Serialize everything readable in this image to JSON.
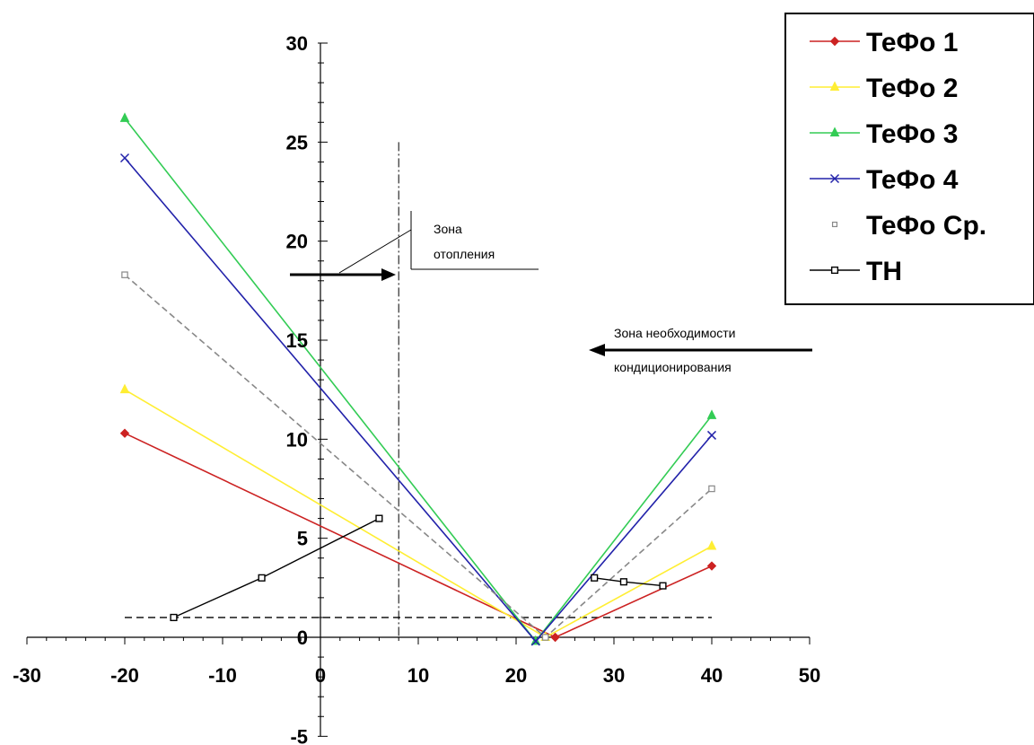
{
  "chart_data": {
    "type": "line",
    "xlim": [
      -30,
      50
    ],
    "ylim": [
      -5,
      30
    ],
    "x_ticks": [
      -30,
      -20,
      -10,
      0,
      10,
      20,
      30,
      40,
      50
    ],
    "y_ticks": [
      -5,
      0,
      5,
      10,
      15,
      20,
      25,
      30
    ],
    "grid": false,
    "legend": "top-right",
    "series": [
      {
        "name": "ТеФо 1",
        "color": "#cc2222",
        "marker": "diamond",
        "dashed": false,
        "points": [
          [
            -20,
            10.3
          ],
          [
            24,
            0
          ],
          [
            40,
            3.6
          ]
        ]
      },
      {
        "name": "ТеФо 2",
        "color": "#ffee33",
        "marker": "triangle",
        "dashed": false,
        "points": [
          [
            -20,
            12.5
          ],
          [
            23,
            0
          ],
          [
            40,
            4.6
          ]
        ]
      },
      {
        "name": "ТеФо 3",
        "color": "#33cc55",
        "marker": "triangle",
        "dashed": false,
        "points": [
          [
            -20,
            26.2
          ],
          [
            22,
            -0.2
          ],
          [
            40,
            11.2
          ]
        ]
      },
      {
        "name": "ТеФо 4",
        "color": "#2222aa",
        "marker": "cross",
        "dashed": false,
        "points": [
          [
            -20,
            24.2
          ],
          [
            22,
            -0.2
          ],
          [
            40,
            10.2
          ]
        ]
      },
      {
        "name": "ТеФо Ср.",
        "color": "#888888",
        "marker": "square",
        "dashed": true,
        "points": [
          [
            -20,
            18.3
          ],
          [
            23,
            0
          ],
          [
            40,
            7.5
          ]
        ]
      },
      {
        "name": "ТН",
        "color": "#000000",
        "marker": "square-open",
        "dashed": false,
        "segments": [
          [
            [
              -15,
              1
            ],
            [
              -6,
              3
            ],
            [
              6,
              6
            ]
          ],
          [
            [
              28,
              3
            ],
            [
              31,
              2.8
            ],
            [
              35,
              2.6
            ]
          ]
        ]
      }
    ],
    "reference_lines": {
      "horizontal_y": 1,
      "horizontal_x_range": [
        -20,
        40
      ],
      "vertical_x": 8,
      "vertical_y_range": [
        0,
        25
      ]
    },
    "annotations": {
      "heating_zone": "Зона отопления",
      "conditioning_zone": "Зона необходимости кондиционирования"
    }
  }
}
